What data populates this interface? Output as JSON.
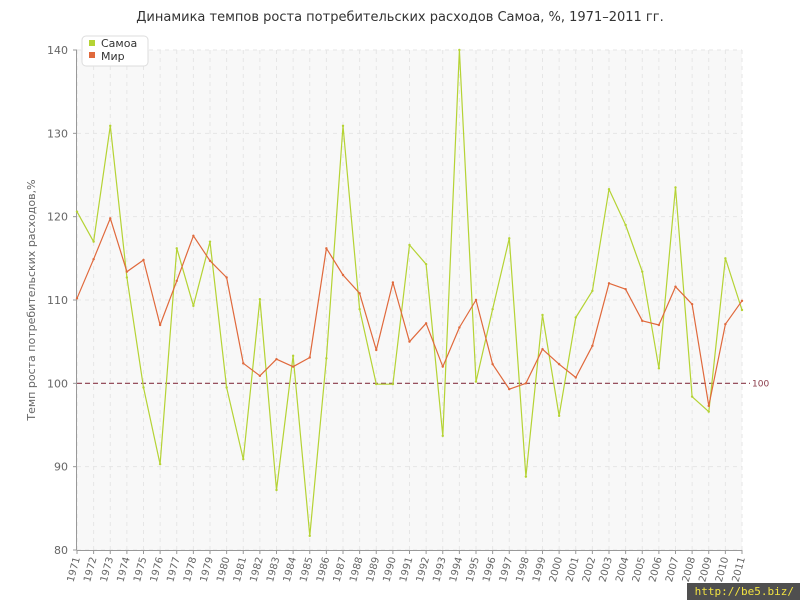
{
  "chart_data": {
    "type": "line",
    "title": "Динамика темпов роста потребительских расходов Самоа, %, 1971–2011 гг.",
    "ylabel": "Темп роста потребительских расходов,%",
    "xlabel": "",
    "ylim": [
      80,
      140
    ],
    "yticks": [
      80,
      90,
      100,
      110,
      120,
      130,
      140
    ],
    "grid": true,
    "legend_position": "top-left",
    "reference_line": {
      "value": 100,
      "label": "100",
      "color": "#8a3b4a"
    },
    "categories": [
      "1971",
      "1972",
      "1973",
      "1974",
      "1975",
      "1976",
      "1977",
      "1978",
      "1979",
      "1980",
      "1981",
      "1982",
      "1983",
      "1984",
      "1985",
      "1986",
      "1987",
      "1988",
      "1989",
      "1990",
      "1991",
      "1992",
      "1993",
      "1994",
      "1995",
      "1996",
      "1997",
      "1998",
      "1999",
      "2000",
      "2001",
      "2002",
      "2003",
      "2004",
      "2005",
      "2006",
      "2007",
      "2008",
      "2009",
      "2010",
      "2011"
    ],
    "series": [
      {
        "name": "Самоа",
        "color": "#b5d334",
        "values": [
          120.6,
          117.0,
          130.9,
          112.7,
          99.5,
          90.3,
          116.2,
          109.3,
          117.0,
          99.5,
          90.9,
          110.1,
          87.2,
          103.3,
          81.7,
          103.0,
          130.9,
          108.9,
          99.9,
          99.9,
          116.6,
          114.3,
          93.7,
          140.0,
          100.2,
          108.9,
          117.4,
          88.8,
          108.2,
          96.1,
          107.9,
          111.1,
          123.3,
          119.0,
          113.4,
          101.8,
          123.5,
          98.4,
          96.6,
          115.0,
          108.8
        ]
      },
      {
        "name": "Мир",
        "color": "#e0693c",
        "values": [
          110.2,
          114.9,
          119.8,
          113.4,
          114.8,
          107.0,
          112.3,
          117.7,
          114.7,
          112.7,
          102.4,
          100.9,
          102.9,
          102.0,
          103.1,
          116.2,
          113.0,
          110.8,
          104.0,
          112.1,
          105.0,
          107.2,
          102.0,
          106.7,
          110.0,
          102.3,
          99.3,
          100.0,
          104.1,
          102.3,
          100.7,
          104.5,
          112.0,
          111.3,
          107.5,
          107.0,
          111.6,
          109.5,
          97.3,
          107.1,
          109.9
        ]
      }
    ]
  },
  "watermark": "http://be5.biz/"
}
